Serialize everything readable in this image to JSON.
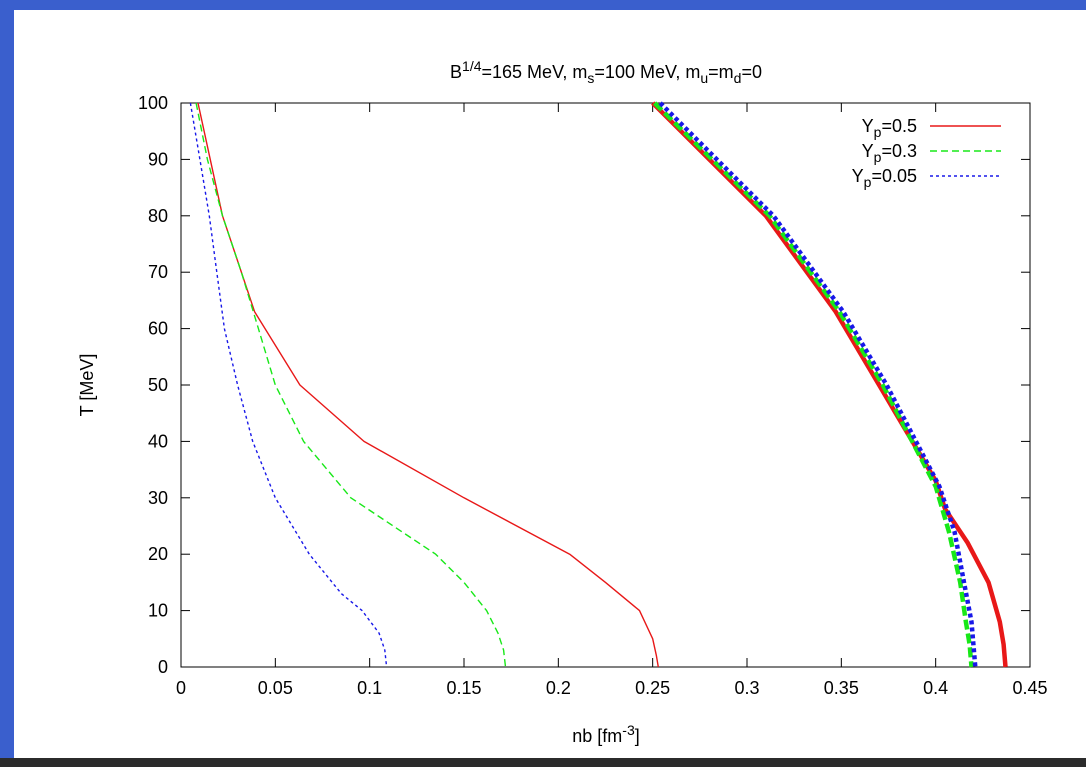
{
  "colors": {
    "frame": "#3a5fcd",
    "frame_bottom": "#2b2b2b",
    "series_colors": [
      "#e81818",
      "#18e818",
      "#1818e8"
    ]
  },
  "chart_data": {
    "type": "line",
    "title": {
      "parts": [
        {
          "t": "B",
          "s": ""
        },
        {
          "t": "1/4",
          "s": "sup"
        },
        {
          "t": "=165 MeV, m",
          "s": ""
        },
        {
          "t": "s",
          "s": "sub"
        },
        {
          "t": "=100 MeV, m",
          "s": ""
        },
        {
          "t": "u",
          "s": "sub"
        },
        {
          "t": "=m",
          "s": ""
        },
        {
          "t": "d",
          "s": "sub"
        },
        {
          "t": "=0",
          "s": ""
        }
      ]
    },
    "xlabel": {
      "parts": [
        {
          "t": "nb [fm",
          "s": ""
        },
        {
          "t": "-3",
          "s": "sup"
        },
        {
          "t": "]",
          "s": ""
        }
      ]
    },
    "ylabel": "T [MeV]",
    "xlim": [
      0,
      0.45
    ],
    "ylim": [
      0,
      100
    ],
    "xticks": [
      "0",
      "0.05",
      "0.1",
      "0.15",
      "0.2",
      "0.25",
      "0.3",
      "0.35",
      "0.4",
      "0.45"
    ],
    "yticks": [
      "0",
      "10",
      "20",
      "30",
      "40",
      "50",
      "60",
      "70",
      "80",
      "90",
      "100"
    ],
    "grid": false,
    "legend_position": "top-right",
    "series": [
      {
        "name": {
          "parts": [
            {
              "t": "Y",
              "s": ""
            },
            {
              "t": "p",
              "s": "sub"
            },
            {
              "t": "=0.5",
              "s": ""
            }
          ]
        },
        "style": "solid",
        "lower": [
          [
            0.009,
            100
          ],
          [
            0.022,
            80
          ],
          [
            0.039,
            63
          ],
          [
            0.063,
            50
          ],
          [
            0.097,
            40
          ],
          [
            0.15,
            30
          ],
          [
            0.206,
            20
          ],
          [
            0.225,
            15
          ],
          [
            0.243,
            10
          ],
          [
            0.25,
            5
          ],
          [
            0.252,
            2
          ],
          [
            0.253,
            0
          ]
        ],
        "upper": [
          [
            0.25,
            100
          ],
          [
            0.31,
            80
          ],
          [
            0.347,
            63
          ],
          [
            0.37,
            50
          ],
          [
            0.4,
            33
          ],
          [
            0.405,
            28
          ],
          [
            0.417,
            22
          ],
          [
            0.428,
            15
          ],
          [
            0.434,
            8
          ],
          [
            0.436,
            4
          ],
          [
            0.437,
            0
          ]
        ]
      },
      {
        "name": {
          "parts": [
            {
              "t": "Y",
              "s": ""
            },
            {
              "t": "p",
              "s": "sub"
            },
            {
              "t": "=0.3",
              "s": ""
            }
          ]
        },
        "style": "dashed",
        "lower": [
          [
            0.008,
            100
          ],
          [
            0.014,
            90
          ],
          [
            0.022,
            80
          ],
          [
            0.032,
            70
          ],
          [
            0.041,
            60
          ],
          [
            0.05,
            50
          ],
          [
            0.065,
            40
          ],
          [
            0.09,
            30
          ],
          [
            0.135,
            20
          ],
          [
            0.15,
            15
          ],
          [
            0.162,
            10
          ],
          [
            0.168,
            6
          ],
          [
            0.171,
            3
          ],
          [
            0.172,
            0
          ]
        ],
        "upper": [
          [
            0.251,
            100
          ],
          [
            0.312,
            80
          ],
          [
            0.349,
            63
          ],
          [
            0.372,
            50
          ],
          [
            0.4,
            32
          ],
          [
            0.407,
            24
          ],
          [
            0.413,
            15
          ],
          [
            0.416,
            8
          ],
          [
            0.418,
            4
          ],
          [
            0.419,
            0
          ]
        ]
      },
      {
        "name": {
          "parts": [
            {
              "t": "Y",
              "s": ""
            },
            {
              "t": "p",
              "s": "sub"
            },
            {
              "t": "=0.05",
              "s": ""
            }
          ]
        },
        "style": "dotted",
        "lower": [
          [
            0.005,
            100
          ],
          [
            0.01,
            90
          ],
          [
            0.015,
            80
          ],
          [
            0.019,
            70
          ],
          [
            0.023,
            60
          ],
          [
            0.03,
            50
          ],
          [
            0.038,
            40
          ],
          [
            0.05,
            30
          ],
          [
            0.068,
            20
          ],
          [
            0.085,
            13
          ],
          [
            0.096,
            10
          ],
          [
            0.105,
            6
          ],
          [
            0.108,
            3
          ],
          [
            0.109,
            0
          ]
        ],
        "upper": [
          [
            0.254,
            100
          ],
          [
            0.314,
            80
          ],
          [
            0.351,
            63
          ],
          [
            0.374,
            50
          ],
          [
            0.402,
            32
          ],
          [
            0.41,
            24
          ],
          [
            0.415,
            15
          ],
          [
            0.419,
            8
          ],
          [
            0.42,
            4
          ],
          [
            0.421,
            0
          ]
        ]
      }
    ]
  }
}
